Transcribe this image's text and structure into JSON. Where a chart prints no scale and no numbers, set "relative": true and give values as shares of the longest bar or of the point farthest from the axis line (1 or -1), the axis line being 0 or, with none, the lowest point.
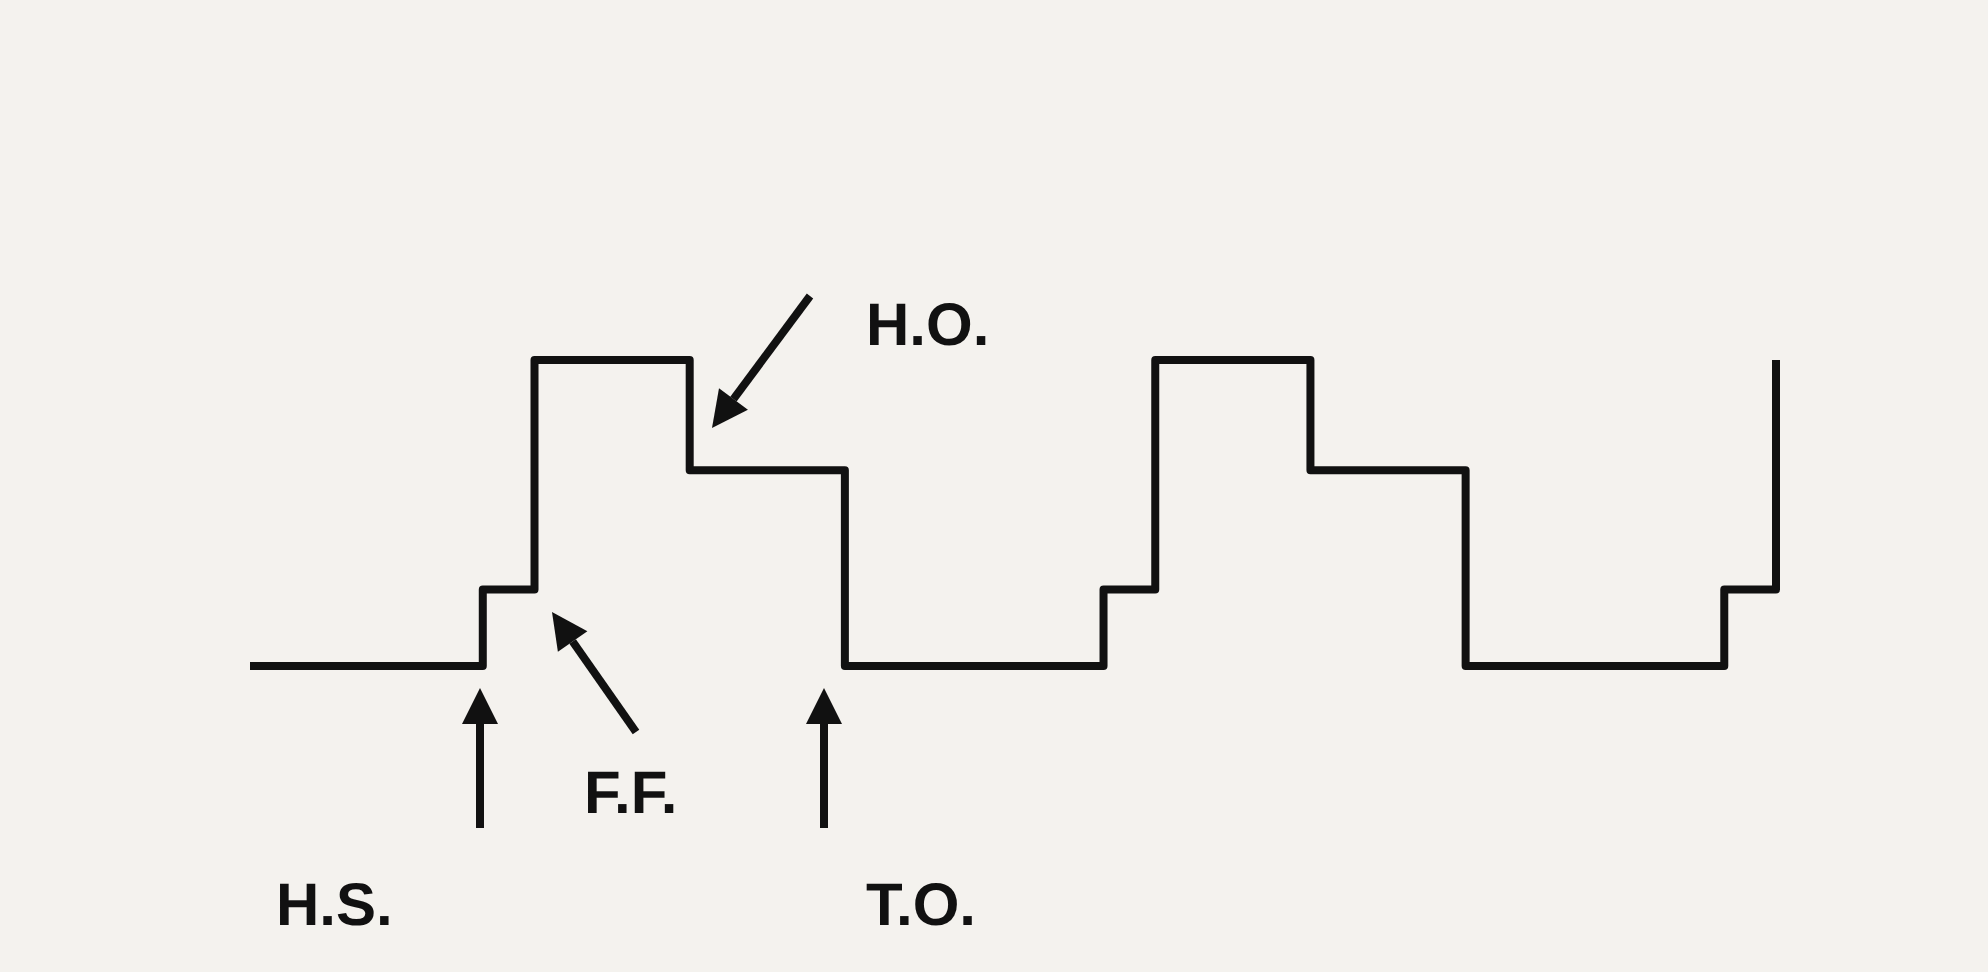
{
  "chart_data": {
    "type": "step",
    "relative": true,
    "marker": "none",
    "color": "#111111",
    "categories": [
      null,
      null,
      null,
      null,
      null,
      null,
      null,
      null,
      null,
      null,
      null,
      null,
      null,
      null,
      null,
      null,
      null,
      null,
      null,
      null,
      null,
      null,
      null,
      null,
      null,
      null,
      null,
      null,
      null,
      null,
      null,
      null,
      null,
      null,
      null,
      null,
      null,
      null,
      null,
      null,
      null,
      null,
      null,
      null,
      null,
      null,
      null,
      null,
      null,
      null,
      null,
      null,
      null,
      null,
      null,
      null,
      null,
      null,
      null,
      null
    ],
    "values": [
      0,
      0,
      0,
      0,
      0,
      0,
      0,
      0,
      0,
      0.25,
      0.25,
      1,
      1,
      1,
      1,
      1,
      1,
      0.64,
      0.64,
      0.64,
      0.64,
      0.64,
      0.64,
      0,
      0,
      0,
      0,
      0,
      0,
      0,
      0,
      0,
      0,
      0.25,
      0.25,
      1,
      1,
      1,
      1,
      1,
      1,
      0.64,
      0.64,
      0.64,
      0.64,
      0.64,
      0.64,
      0,
      0,
      0,
      0,
      0,
      0,
      0,
      0,
      0,
      0,
      0.25,
      0.25,
      1
    ],
    "annotations": [
      "H.O.",
      "F.F.",
      "H.S.",
      "T.O."
    ]
  }
}
